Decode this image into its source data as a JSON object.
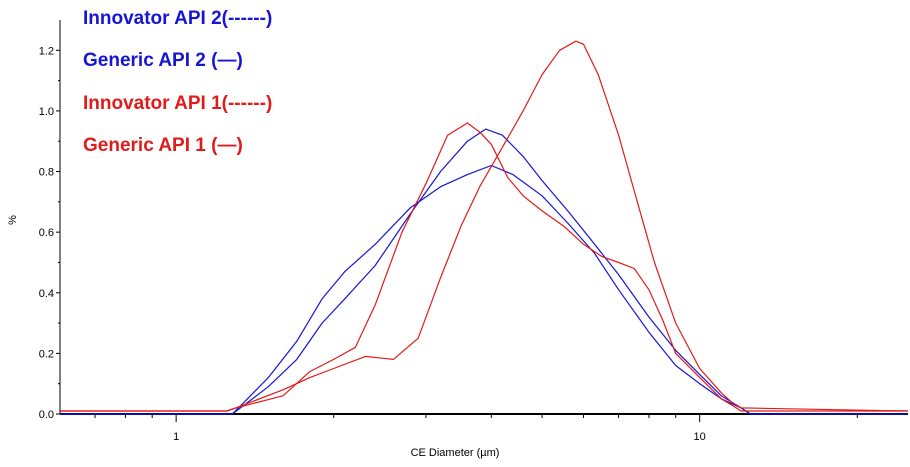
{
  "chart_data": {
    "type": "line",
    "xscale": "log",
    "xlim": [
      0.6,
      25
    ],
    "ylim": [
      0,
      1.3
    ],
    "xlabel": "CE Diameter (µm)",
    "ylabel": "%",
    "x_ticks": [
      1,
      10
    ],
    "x_tick_labels": [
      "1",
      "10"
    ],
    "y_ticks": [
      0.0,
      0.2,
      0.4,
      0.6,
      0.8,
      1.0,
      1.2
    ],
    "y_tick_labels": [
      "0.0",
      "0.2",
      "0.4",
      "0.6",
      "0.8",
      "1.0",
      "1.2"
    ],
    "grid": false,
    "legend_position": "top-left",
    "series": [
      {
        "name": "Innovator API 2(------)",
        "color": "#1515d6",
        "x": [
          0.6,
          1.28,
          1.35,
          1.5,
          1.7,
          1.9,
          2.1,
          2.4,
          2.8,
          3.2,
          3.6,
          4.0,
          4.4,
          5.0,
          5.6,
          6.3,
          7.0,
          8.0,
          9.0,
          10.0,
          11.0,
          12.0,
          12.5,
          25
        ],
        "y": [
          0.0,
          0.0,
          0.04,
          0.12,
          0.24,
          0.38,
          0.47,
          0.56,
          0.68,
          0.75,
          0.79,
          0.82,
          0.79,
          0.72,
          0.63,
          0.53,
          0.41,
          0.27,
          0.16,
          0.1,
          0.05,
          0.02,
          0.0,
          0.0
        ]
      },
      {
        "name": "Generic API 2 (—)",
        "color": "#1515d6",
        "x": [
          0.6,
          1.28,
          1.35,
          1.5,
          1.7,
          1.9,
          2.1,
          2.4,
          2.8,
          3.2,
          3.6,
          3.9,
          4.2,
          4.6,
          5.0,
          5.6,
          6.3,
          7.0,
          8.0,
          9.0,
          10.0,
          11.0,
          12.0,
          12.5,
          25
        ],
        "y": [
          0.0,
          0.0,
          0.03,
          0.09,
          0.18,
          0.3,
          0.38,
          0.49,
          0.66,
          0.8,
          0.9,
          0.94,
          0.92,
          0.85,
          0.77,
          0.67,
          0.56,
          0.46,
          0.32,
          0.21,
          0.13,
          0.06,
          0.02,
          0.0,
          0.0
        ]
      },
      {
        "name": "Innovator API 1(------)",
        "color": "#e21a1a",
        "x": [
          0.6,
          1.25,
          1.3,
          1.6,
          1.8,
          2.0,
          2.2,
          2.4,
          2.7,
          3.0,
          3.3,
          3.6,
          3.8,
          4.0,
          4.3,
          4.6,
          5.0,
          5.5,
          6.0,
          6.5,
          7.0,
          7.5,
          8.0,
          8.5,
          9.0,
          10.0,
          11.0,
          11.5,
          12.0,
          25
        ],
        "y": [
          0.01,
          0.01,
          0.02,
          0.06,
          0.14,
          0.18,
          0.22,
          0.36,
          0.6,
          0.76,
          0.92,
          0.96,
          0.93,
          0.89,
          0.78,
          0.72,
          0.67,
          0.62,
          0.56,
          0.52,
          0.5,
          0.48,
          0.41,
          0.31,
          0.2,
          0.12,
          0.05,
          0.03,
          0.01,
          0.01
        ]
      },
      {
        "name": "Generic API 1 (—)",
        "color": "#e21a1a",
        "x": [
          0.6,
          1.25,
          1.3,
          1.6,
          1.8,
          2.0,
          2.3,
          2.6,
          2.9,
          3.2,
          3.5,
          3.8,
          4.2,
          4.6,
          5.0,
          5.4,
          5.8,
          6.0,
          6.4,
          7.0,
          7.6,
          8.2,
          9.0,
          10.0,
          11.0,
          11.5,
          12.0,
          25
        ],
        "y": [
          0.01,
          0.01,
          0.02,
          0.08,
          0.12,
          0.15,
          0.19,
          0.18,
          0.25,
          0.45,
          0.62,
          0.75,
          0.88,
          1.0,
          1.12,
          1.2,
          1.23,
          1.22,
          1.12,
          0.92,
          0.7,
          0.5,
          0.3,
          0.15,
          0.07,
          0.04,
          0.02,
          0.01
        ]
      }
    ]
  }
}
